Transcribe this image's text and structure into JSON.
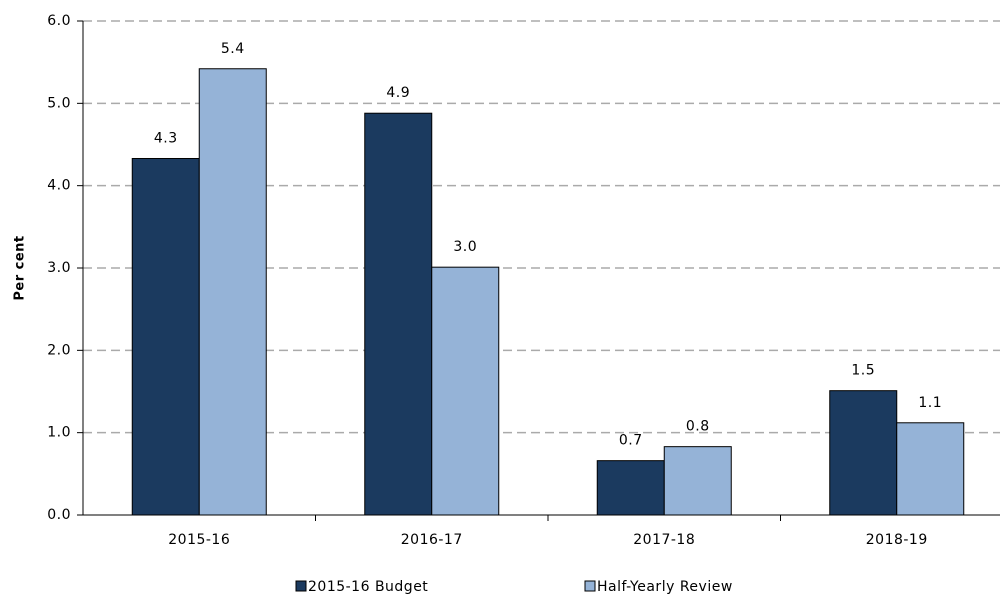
{
  "chart_data": {
    "type": "bar",
    "y_label": "Per cent",
    "categories": [
      "2015-16",
      "2016-17",
      "2017-18",
      "2018-19"
    ],
    "series": [
      {
        "name": "2015-16 Budget",
        "color": "#1b3a5f",
        "values": [
          4.33,
          4.88,
          0.66,
          1.51
        ],
        "value_labels": [
          "4.3",
          "4.9",
          "0.7",
          "1.5"
        ]
      },
      {
        "name": "Half-Yearly Review",
        "color": "#95b3d7",
        "values": [
          5.42,
          3.01,
          0.83,
          1.12
        ],
        "value_labels": [
          "5.4",
          "3.0",
          "0.8",
          "1.1"
        ]
      }
    ],
    "ylim": [
      0,
      6
    ],
    "yticks": [
      {
        "value": 0,
        "label": "0.0"
      },
      {
        "value": 1,
        "label": "1.0"
      },
      {
        "value": 2,
        "label": "2.0"
      },
      {
        "value": 3,
        "label": "3.0"
      },
      {
        "value": 4,
        "label": "4.0"
      },
      {
        "value": 5,
        "label": "5.0"
      },
      {
        "value": 6,
        "label": "6.0"
      }
    ],
    "grid": true,
    "legend": "bottom"
  }
}
